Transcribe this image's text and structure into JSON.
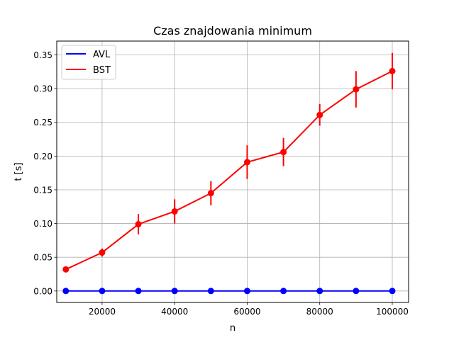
{
  "chart_data": {
    "type": "line",
    "title": "Czas znajdowania minimum",
    "xlabel": "n",
    "ylabel": "t [s]",
    "xlim": [
      7500,
      104500
    ],
    "ylim": [
      -0.017,
      0.3705
    ],
    "grid": true,
    "legend_position": "top-left",
    "xticks": [
      20000,
      40000,
      60000,
      80000,
      100000
    ],
    "xtick_labels": [
      "20000",
      "40000",
      "60000",
      "80000",
      "100000"
    ],
    "yticks": [
      0.0,
      0.05,
      0.1,
      0.15,
      0.2,
      0.25,
      0.3,
      0.35
    ],
    "ytick_labels": [
      "0.00",
      "0.05",
      "0.10",
      "0.15",
      "0.20",
      "0.25",
      "0.30",
      "0.35"
    ],
    "x": [
      10000,
      20000,
      30000,
      40000,
      50000,
      60000,
      70000,
      80000,
      90000,
      100000
    ],
    "series": [
      {
        "name": "AVL",
        "color": "#0000ff",
        "values": [
          0.0,
          0.0,
          0.0,
          0.0,
          0.0,
          0.0,
          0.0,
          0.0,
          0.0,
          0.0
        ],
        "errors": [
          0.0,
          0.0,
          0.0,
          0.0,
          0.0,
          0.0,
          0.0,
          0.0,
          0.0,
          0.0
        ]
      },
      {
        "name": "BST",
        "color": "#ff0000",
        "values": [
          0.032,
          0.057,
          0.099,
          0.118,
          0.145,
          0.191,
          0.206,
          0.261,
          0.299,
          0.326
        ],
        "errors": [
          0.003,
          0.006,
          0.015,
          0.018,
          0.018,
          0.025,
          0.021,
          0.016,
          0.027,
          0.027
        ]
      }
    ]
  }
}
